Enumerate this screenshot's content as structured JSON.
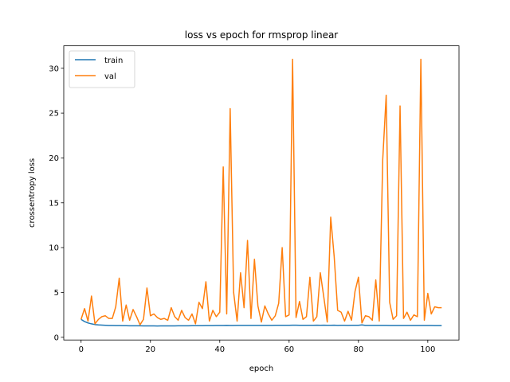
{
  "chart_data": {
    "type": "line",
    "title": "loss vs epoch for rmsprop linear",
    "xlabel": "epoch",
    "ylabel": "crossentropy loss",
    "xlim": [
      -5,
      109
    ],
    "ylim": [
      -0.3,
      32.5
    ],
    "xticks": [
      0,
      20,
      40,
      60,
      80,
      100
    ],
    "yticks": [
      0,
      5,
      10,
      15,
      20,
      25,
      30
    ],
    "grid": false,
    "legend_position": "top-left",
    "series": [
      {
        "name": "train",
        "color": "#1f77b4",
        "x": [
          0,
          1,
          2,
          3,
          4,
          5,
          6,
          7,
          8,
          9,
          10,
          11,
          12,
          13,
          14,
          15,
          16,
          17,
          18,
          19,
          20,
          21,
          22,
          23,
          24,
          25,
          26,
          27,
          28,
          29,
          30,
          31,
          32,
          33,
          34,
          35,
          36,
          37,
          38,
          39,
          40,
          41,
          42,
          43,
          44,
          45,
          46,
          47,
          48,
          49,
          50,
          51,
          52,
          53,
          54,
          55,
          56,
          57,
          58,
          59,
          60,
          61,
          62,
          63,
          64,
          65,
          66,
          67,
          68,
          69,
          70,
          71,
          72,
          73,
          74,
          75,
          76,
          77,
          78,
          79,
          80,
          81,
          82,
          83,
          84,
          85,
          86,
          87,
          88,
          89,
          90,
          91,
          92,
          93,
          94,
          95,
          96,
          97,
          98,
          99,
          100,
          101,
          102,
          103,
          104
        ],
        "values": [
          2.0,
          1.75,
          1.6,
          1.5,
          1.42,
          1.38,
          1.36,
          1.34,
          1.32,
          1.31,
          1.3,
          1.3,
          1.29,
          1.29,
          1.28,
          1.28,
          1.28,
          1.28,
          1.27,
          1.27,
          1.27,
          1.27,
          1.26,
          1.27,
          1.27,
          1.27,
          1.27,
          1.27,
          1.28,
          1.28,
          1.28,
          1.28,
          1.29,
          1.29,
          1.29,
          1.29,
          1.3,
          1.3,
          1.3,
          1.31,
          1.31,
          1.31,
          1.33,
          1.32,
          1.32,
          1.33,
          1.33,
          1.33,
          1.33,
          1.33,
          1.33,
          1.33,
          1.33,
          1.33,
          1.33,
          1.33,
          1.34,
          1.34,
          1.34,
          1.34,
          1.34,
          1.35,
          1.35,
          1.34,
          1.34,
          1.34,
          1.34,
          1.34,
          1.35,
          1.34,
          1.35,
          1.34,
          1.34,
          1.35,
          1.33,
          1.34,
          1.34,
          1.33,
          1.34,
          1.34,
          1.34,
          1.38,
          1.33,
          1.33,
          1.33,
          1.33,
          1.33,
          1.33,
          1.33,
          1.32,
          1.32,
          1.32,
          1.32,
          1.32,
          1.32,
          1.31,
          1.31,
          1.31,
          1.31,
          1.31,
          1.31,
          1.31,
          1.3,
          1.3,
          1.3
        ]
      },
      {
        "name": "val",
        "color": "#ff7f0e",
        "x": [
          0,
          1,
          2,
          3,
          4,
          5,
          6,
          7,
          8,
          9,
          10,
          11,
          12,
          13,
          14,
          15,
          16,
          17,
          18,
          19,
          20,
          21,
          22,
          23,
          24,
          25,
          26,
          27,
          28,
          29,
          30,
          31,
          32,
          33,
          34,
          35,
          36,
          37,
          38,
          39,
          40,
          41,
          42,
          43,
          44,
          45,
          46,
          47,
          48,
          49,
          50,
          51,
          52,
          53,
          54,
          55,
          56,
          57,
          58,
          59,
          60,
          61,
          62,
          63,
          64,
          65,
          66,
          67,
          68,
          69,
          70,
          71,
          72,
          73,
          74,
          75,
          76,
          77,
          78,
          79,
          80,
          81,
          82,
          83,
          84,
          85,
          86,
          87,
          88,
          89,
          90,
          91,
          92,
          93,
          94,
          95,
          96,
          97,
          98,
          99,
          100,
          101,
          102,
          103,
          104
        ],
        "values": [
          2.0,
          3.2,
          1.8,
          4.6,
          1.5,
          2.0,
          2.3,
          2.4,
          2.1,
          2.1,
          3.4,
          6.6,
          1.8,
          3.6,
          1.9,
          3.1,
          2.3,
          1.4,
          2.0,
          5.5,
          2.4,
          2.6,
          2.2,
          2.0,
          2.1,
          1.9,
          3.3,
          2.3,
          1.9,
          3.0,
          2.2,
          1.9,
          2.6,
          1.5,
          3.9,
          3.2,
          6.2,
          1.8,
          3.0,
          2.3,
          2.8,
          19.0,
          2.6,
          25.5,
          5.0,
          1.8,
          7.2,
          3.3,
          10.8,
          2.1,
          8.7,
          3.5,
          1.7,
          3.5,
          2.6,
          1.9,
          2.4,
          3.8,
          10.0,
          2.3,
          2.5,
          31.0,
          2.2,
          4.0,
          2.0,
          2.3,
          6.7,
          1.8,
          2.3,
          7.2,
          4.5,
          1.7,
          13.4,
          9.0,
          3.0,
          2.8,
          1.8,
          2.9,
          1.9,
          5.1,
          6.7,
          1.6,
          2.4,
          2.3,
          1.9,
          6.4,
          1.8,
          19.8,
          27.0,
          3.9,
          2.0,
          2.4,
          25.8,
          2.1,
          2.8,
          1.9,
          2.5,
          2.3,
          31.0,
          1.9,
          4.9,
          2.6,
          3.4,
          3.3,
          3.3
        ]
      }
    ]
  }
}
